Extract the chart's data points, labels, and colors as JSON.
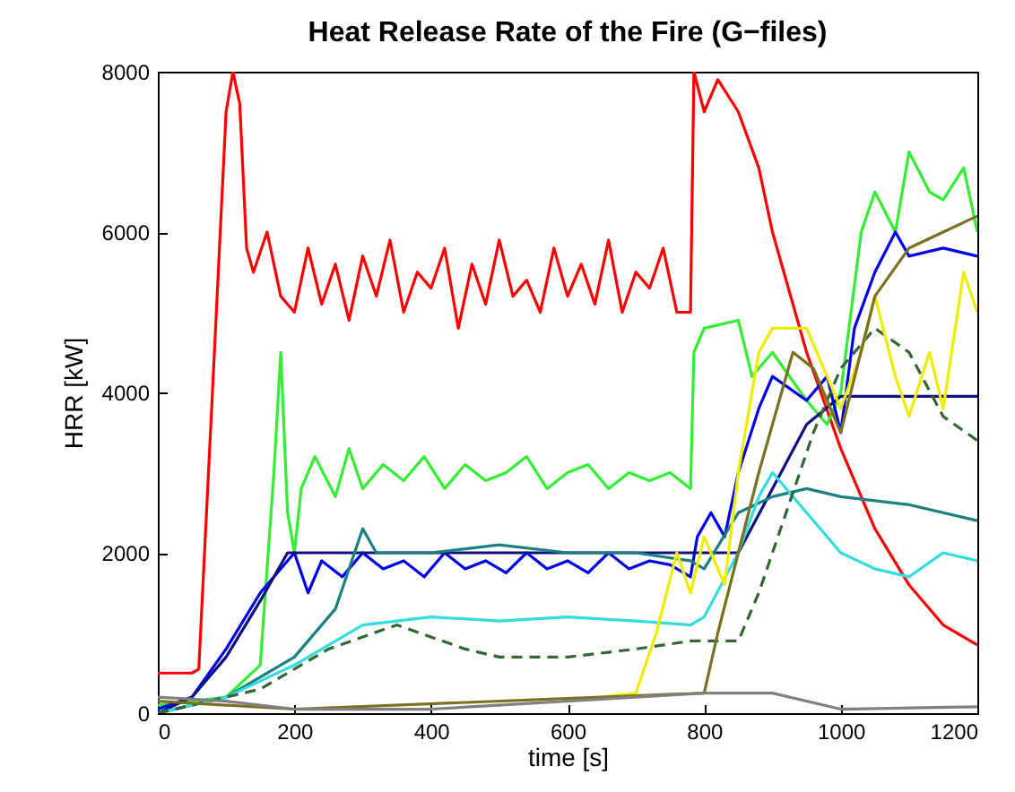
{
  "chart_data": {
    "type": "line",
    "title": "Heat Release Rate of the Fire (G−files)",
    "xlabel": "time [s]",
    "ylabel": "HRR [kW]",
    "xlim": [
      0,
      1200
    ],
    "ylim": [
      0,
      8000
    ],
    "xticks": [
      0,
      200,
      400,
      600,
      800,
      1000,
      1200
    ],
    "yticks": [
      0,
      2000,
      4000,
      6000,
      8000
    ],
    "grid": false,
    "marker": "none",
    "series": [
      {
        "color": "#ff0000",
        "x": [
          0,
          50,
          60,
          80,
          100,
          110,
          120,
          130,
          140,
          160,
          180,
          200,
          220,
          240,
          260,
          280,
          300,
          320,
          340,
          360,
          380,
          400,
          420,
          440,
          460,
          480,
          500,
          520,
          540,
          560,
          580,
          600,
          620,
          640,
          660,
          680,
          700,
          720,
          740,
          760,
          780,
          785,
          800,
          820,
          850,
          880,
          900,
          950,
          1000,
          1050,
          1100,
          1150,
          1200
        ],
        "values": [
          500,
          500,
          550,
          4000,
          7500,
          8000,
          7600,
          5800,
          5500,
          6000,
          5200,
          5000,
          5800,
          5100,
          5600,
          4900,
          5700,
          5200,
          5900,
          5000,
          5500,
          5300,
          5800,
          4800,
          5600,
          5100,
          5900,
          5200,
          5400,
          5000,
          5800,
          5200,
          5600,
          5100,
          5900,
          5000,
          5500,
          5300,
          5800,
          5000,
          5000,
          8000,
          7500,
          7900,
          7500,
          6800,
          6000,
          4500,
          3300,
          2300,
          1600,
          1100,
          850
        ]
      },
      {
        "color": "#33ee33",
        "x": [
          0,
          100,
          150,
          170,
          180,
          190,
          200,
          210,
          230,
          260,
          280,
          300,
          330,
          360,
          390,
          420,
          450,
          480,
          510,
          540,
          570,
          600,
          630,
          660,
          690,
          720,
          750,
          780,
          785,
          800,
          850,
          870,
          900,
          950,
          980,
          1000,
          1030,
          1050,
          1080,
          1100,
          1130,
          1150,
          1180,
          1200
        ],
        "values": [
          100,
          200,
          600,
          3000,
          4500,
          2500,
          2000,
          2800,
          3200,
          2700,
          3300,
          2800,
          3100,
          2900,
          3200,
          2800,
          3100,
          2900,
          3000,
          3200,
          2800,
          3000,
          3100,
          2800,
          3000,
          2900,
          3000,
          2800,
          4500,
          4800,
          4900,
          4200,
          4500,
          3900,
          3600,
          4000,
          6000,
          6500,
          6000,
          7000,
          6500,
          6400,
          6800,
          6000
        ]
      },
      {
        "color": "#0000ee",
        "x": [
          0,
          50,
          100,
          150,
          200,
          220,
          240,
          270,
          300,
          330,
          360,
          390,
          420,
          450,
          480,
          510,
          540,
          570,
          600,
          630,
          660,
          690,
          720,
          750,
          780,
          790,
          810,
          830,
          850,
          880,
          900,
          950,
          980,
          1000,
          1020,
          1050,
          1080,
          1100,
          1150,
          1200
        ],
        "values": [
          50,
          200,
          800,
          1500,
          2000,
          1500,
          1900,
          1700,
          2000,
          1800,
          1900,
          1700,
          2000,
          1800,
          1900,
          1750,
          2000,
          1800,
          1900,
          1750,
          2000,
          1800,
          1900,
          1850,
          1700,
          2200,
          2500,
          2200,
          3000,
          3800,
          4200,
          3900,
          4200,
          3500,
          4800,
          5500,
          6000,
          5700,
          5800,
          5700
        ]
      },
      {
        "color": "#101080",
        "x": [
          0,
          50,
          100,
          150,
          190,
          800,
          850,
          900,
          950,
          1000,
          1200
        ],
        "values": [
          0,
          200,
          700,
          1400,
          2000,
          2000,
          2000,
          2800,
          3600,
          3950,
          3950
        ]
      },
      {
        "color": "#1a8080",
        "x": [
          0,
          100,
          200,
          260,
          280,
          300,
          320,
          400,
          500,
          600,
          700,
          780,
          800,
          850,
          900,
          950,
          1000,
          1100,
          1200
        ],
        "values": [
          0,
          200,
          700,
          1300,
          1800,
          2300,
          2000,
          2000,
          2100,
          2000,
          2000,
          1900,
          1800,
          2500,
          2700,
          2800,
          2700,
          2600,
          2400
        ]
      },
      {
        "color": "#33dddd",
        "x": [
          0,
          100,
          200,
          300,
          400,
          500,
          600,
          700,
          780,
          800,
          850,
          880,
          900,
          950,
          1000,
          1050,
          1100,
          1150,
          1200
        ],
        "values": [
          0,
          200,
          600,
          1100,
          1200,
          1150,
          1200,
          1150,
          1100,
          1200,
          2000,
          2700,
          3000,
          2500,
          2000,
          1800,
          1700,
          2000,
          1900
        ]
      },
      {
        "color": "#336633",
        "line_style": "dashed",
        "x": [
          0,
          150,
          250,
          350,
          450,
          500,
          600,
          700,
          780,
          850,
          880,
          920,
          960,
          1000,
          1050,
          1100,
          1150,
          1200
        ],
        "values": [
          0,
          300,
          800,
          1100,
          800,
          700,
          700,
          800,
          900,
          900,
          1500,
          2500,
          3500,
          4300,
          4800,
          4500,
          3700,
          3400
        ]
      },
      {
        "color": "#eeee00",
        "x": [
          600,
          700,
          730,
          760,
          780,
          800,
          830,
          850,
          880,
          900,
          950,
          1000,
          1030,
          1050,
          1080,
          1100,
          1130,
          1150,
          1180,
          1200
        ],
        "values": [
          150,
          250,
          1000,
          2000,
          1500,
          2200,
          1600,
          3000,
          4500,
          4800,
          4800,
          3800,
          4500,
          5200,
          4200,
          3700,
          4500,
          3800,
          5500,
          5000
        ]
      },
      {
        "color": "#7a7020",
        "x": [
          0,
          200,
          800,
          820,
          850,
          880,
          900,
          930,
          960,
          1000,
          1050,
          1100,
          1150,
          1200
        ],
        "values": [
          150,
          50,
          250,
          1000,
          2000,
          3000,
          3600,
          4500,
          4300,
          3500,
          5200,
          5800,
          6000,
          6200
        ]
      },
      {
        "color": "#808080",
        "x": [
          0,
          100,
          200,
          400,
          800,
          900,
          1000,
          1200
        ],
        "values": [
          200,
          150,
          50,
          50,
          250,
          250,
          50,
          80
        ]
      }
    ]
  }
}
